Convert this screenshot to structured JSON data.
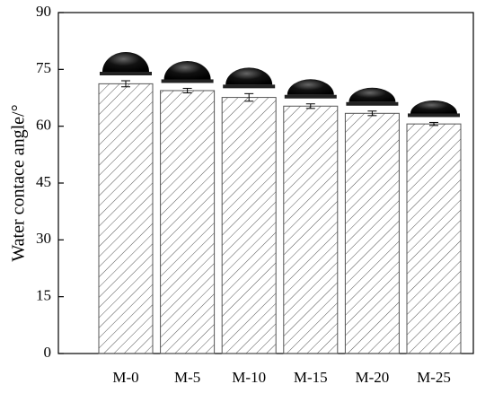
{
  "chart_data": {
    "type": "bar",
    "ylabel": "Water contace angle/°",
    "categories": [
      "M-0",
      "M-5",
      "M-10",
      "M-15",
      "M-20",
      "M-25"
    ],
    "values": [
      71.2,
      69.4,
      67.6,
      65.3,
      63.4,
      60.6
    ],
    "errors": [
      0.8,
      0.6,
      1.0,
      0.6,
      0.6,
      0.4
    ],
    "color": "#555555",
    "ylim": [
      0,
      90
    ],
    "yticks": [
      0,
      15,
      30,
      45,
      60,
      75,
      90
    ]
  }
}
